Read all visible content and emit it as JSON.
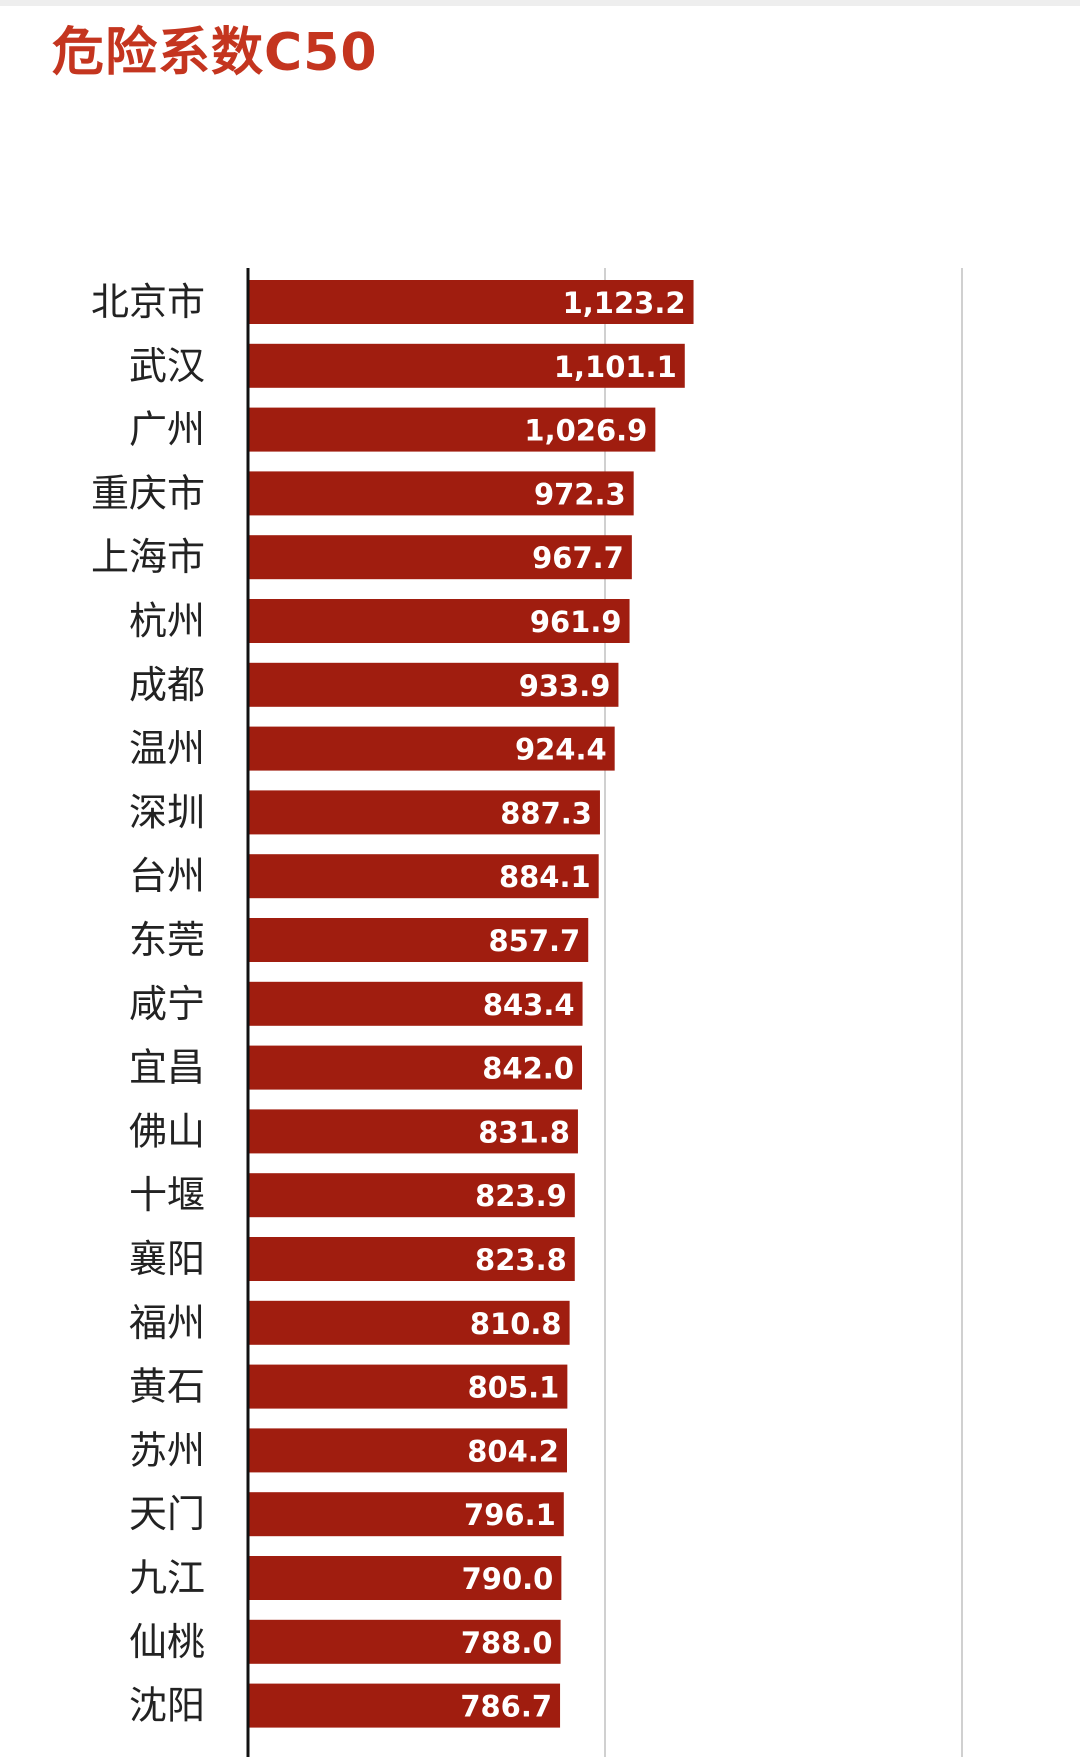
{
  "title": "危险系数C50",
  "colors": {
    "title": "#c4351f",
    "bar": "#a01d0f",
    "value_label": "#ffffff",
    "grid": "#d0d0d0",
    "axis": "#111111"
  },
  "chart_data": {
    "type": "bar",
    "orientation": "horizontal",
    "title": "危险系数C50",
    "xlabel": "",
    "ylabel": "",
    "grid": true,
    "legend": "none",
    "xlim": [
      0,
      1800
    ],
    "categories": [
      "北京市",
      "武汉",
      "广州",
      "重庆市",
      "上海市",
      "杭州",
      "成都",
      "温州",
      "深圳",
      "台州",
      "东莞",
      "咸宁",
      "宜昌",
      "佛山",
      "十堰",
      "襄阳",
      "福州",
      "黄石",
      "苏州",
      "天门",
      "九江",
      "仙桃",
      "沈阳"
    ],
    "values": [
      1123.2,
      1101.1,
      1026.9,
      972.3,
      967.7,
      961.9,
      933.9,
      924.4,
      887.3,
      884.1,
      857.7,
      843.4,
      842.0,
      831.8,
      823.9,
      823.8,
      810.8,
      805.1,
      804.2,
      796.1,
      790.0,
      788.0,
      786.7
    ],
    "value_labels": [
      "1,123.2",
      "1,101.1",
      "1,026.9",
      "972.3",
      "967.7",
      "961.9",
      "933.9",
      "924.4",
      "887.3",
      "884.1",
      "857.7",
      "843.4",
      "842.0",
      "831.8",
      "823.9",
      "823.8",
      "810.8",
      "805.1",
      "804.2",
      "796.1",
      "790.0",
      "788.0",
      "786.7"
    ]
  }
}
